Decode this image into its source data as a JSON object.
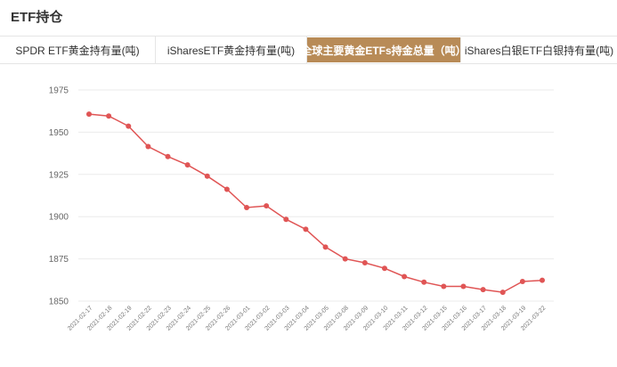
{
  "page_title": "ETF持仓",
  "tabs": [
    {
      "label": "SPDR ETF黄金持有量(吨)",
      "active": false
    },
    {
      "label": "iSharesETF黄金持有量(吨)",
      "active": false
    },
    {
      "label": "全球主要黄金ETFs持金总量（吨）",
      "active": true
    },
    {
      "label": "iShares白银ETF白银持有量(吨)",
      "active": false
    }
  ],
  "colors": {
    "line": "#e05555",
    "active_tab": "#b88b57",
    "grid": "#ebebeb"
  },
  "chart_data": {
    "type": "line",
    "x": [
      "2021-02-17",
      "2021-02-18",
      "2021-02-19",
      "2021-02-22",
      "2021-02-23",
      "2021-02-24",
      "2021-02-25",
      "2021-02-26",
      "2021-03-01",
      "2021-03-02",
      "2021-03-03",
      "2021-03-04",
      "2021-03-05",
      "2021-03-08",
      "2021-03-09",
      "2021-03-10",
      "2021-03-11",
      "2021-03-12",
      "2021-03-15",
      "2021-03-16",
      "2021-03-17",
      "2021-03-18",
      "2021-03-19",
      "2021-03-22"
    ],
    "values": [
      1960.7,
      1959.6,
      1953.6,
      1941.5,
      1935.6,
      1930.6,
      1924.0,
      1916.2,
      1905.4,
      1906.4,
      1898.4,
      1892.5,
      1882.0,
      1875.0,
      1872.7,
      1869.4,
      1864.5,
      1861.2,
      1858.7,
      1858.7,
      1856.8,
      1855.2,
      1861.6,
      1862.3
    ],
    "yticks": [
      1850,
      1875,
      1900,
      1925,
      1950,
      1975
    ],
    "ylim": [
      1850,
      1975
    ],
    "grid": true,
    "legend": "none"
  }
}
